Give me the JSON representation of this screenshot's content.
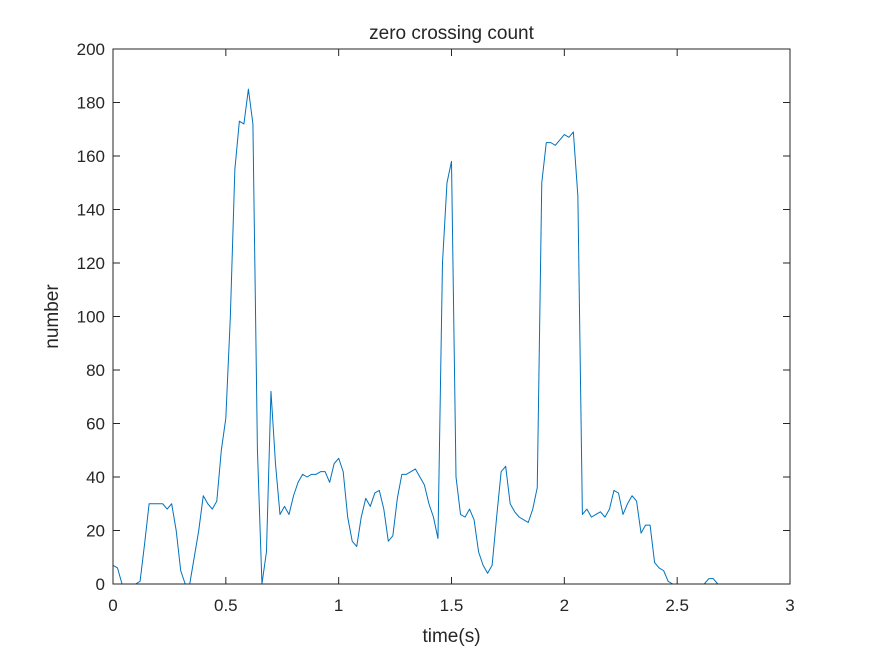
{
  "chart_data": {
    "type": "line",
    "title": "zero crossing count",
    "xlabel": "time(s)",
    "ylabel": "number",
    "xlim": [
      0,
      3
    ],
    "ylim": [
      0,
      200
    ],
    "xticks": [
      0,
      0.5,
      1,
      1.5,
      2,
      2.5,
      3
    ],
    "xtick_labels": [
      "0",
      "0.5",
      "1",
      "1.5",
      "2",
      "2.5",
      "3"
    ],
    "yticks": [
      0,
      20,
      40,
      60,
      80,
      100,
      120,
      140,
      160,
      180,
      200
    ],
    "ytick_labels": [
      "0",
      "20",
      "40",
      "60",
      "80",
      "100",
      "120",
      "140",
      "160",
      "180",
      "200"
    ],
    "grid": false,
    "line_color": "#0072BD",
    "series": [
      {
        "x": [
          0,
          0.02,
          0.04,
          0.06,
          0.08,
          0.1,
          0.12,
          0.14,
          0.16,
          0.18,
          0.2,
          0.22,
          0.24,
          0.26,
          0.28,
          0.3,
          0.32,
          0.34,
          0.36,
          0.38,
          0.4,
          0.42,
          0.44,
          0.46,
          0.48,
          0.5,
          0.52,
          0.54,
          0.56,
          0.58,
          0.6,
          0.62,
          0.64,
          0.66,
          0.68,
          0.7,
          0.72,
          0.74,
          0.76,
          0.78,
          0.8,
          0.82,
          0.84,
          0.86,
          0.88,
          0.9,
          0.92,
          0.94,
          0.96,
          0.98,
          1.0,
          1.02,
          1.04,
          1.06,
          1.08,
          1.1,
          1.12,
          1.14,
          1.16,
          1.18,
          1.2,
          1.22,
          1.24,
          1.26,
          1.28,
          1.3,
          1.32,
          1.34,
          1.36,
          1.38,
          1.4,
          1.42,
          1.44,
          1.46,
          1.48,
          1.5,
          1.52,
          1.54,
          1.56,
          1.58,
          1.6,
          1.62,
          1.64,
          1.66,
          1.68,
          1.7,
          1.72,
          1.74,
          1.76,
          1.78,
          1.8,
          1.82,
          1.84,
          1.86,
          1.88,
          1.9,
          1.92,
          1.94,
          1.96,
          1.98,
          2.0,
          2.02,
          2.04,
          2.06,
          2.08,
          2.1,
          2.12,
          2.14,
          2.16,
          2.18,
          2.2,
          2.22,
          2.24,
          2.26,
          2.28,
          2.3,
          2.32,
          2.34,
          2.36,
          2.38,
          2.4,
          2.42,
          2.44,
          2.46,
          2.48,
          2.5,
          2.55,
          2.6,
          2.62,
          2.64,
          2.66,
          2.68,
          2.7,
          2.8,
          2.9,
          3.0
        ],
        "y": [
          7,
          6,
          0,
          0,
          0,
          0,
          1,
          15,
          30,
          30,
          30,
          30,
          28,
          30,
          20,
          5,
          0,
          0,
          10,
          20,
          33,
          30,
          28,
          31,
          50,
          62,
          100,
          155,
          173,
          172,
          185,
          172,
          50,
          0,
          12,
          72,
          45,
          26,
          29,
          26,
          33,
          38,
          41,
          40,
          41,
          41,
          42,
          42,
          38,
          45,
          47,
          42,
          25,
          16,
          14,
          25,
          32,
          29,
          34,
          35,
          28,
          16,
          18,
          32,
          41,
          41,
          42,
          43,
          40,
          37,
          30,
          25,
          17,
          120,
          150,
          158,
          40,
          26,
          25,
          28,
          24,
          12,
          7,
          4,
          7,
          25,
          42,
          44,
          30,
          27,
          25,
          24,
          23,
          28,
          36,
          150,
          165,
          165,
          164,
          166,
          168,
          167,
          169,
          145,
          26,
          28,
          25,
          26,
          27,
          25,
          28,
          35,
          34,
          26,
          30,
          33,
          31,
          19,
          22,
          22,
          8,
          6,
          5,
          1,
          0,
          0,
          0,
          0,
          0,
          2,
          2,
          0,
          0,
          0,
          0,
          0
        ]
      }
    ]
  }
}
